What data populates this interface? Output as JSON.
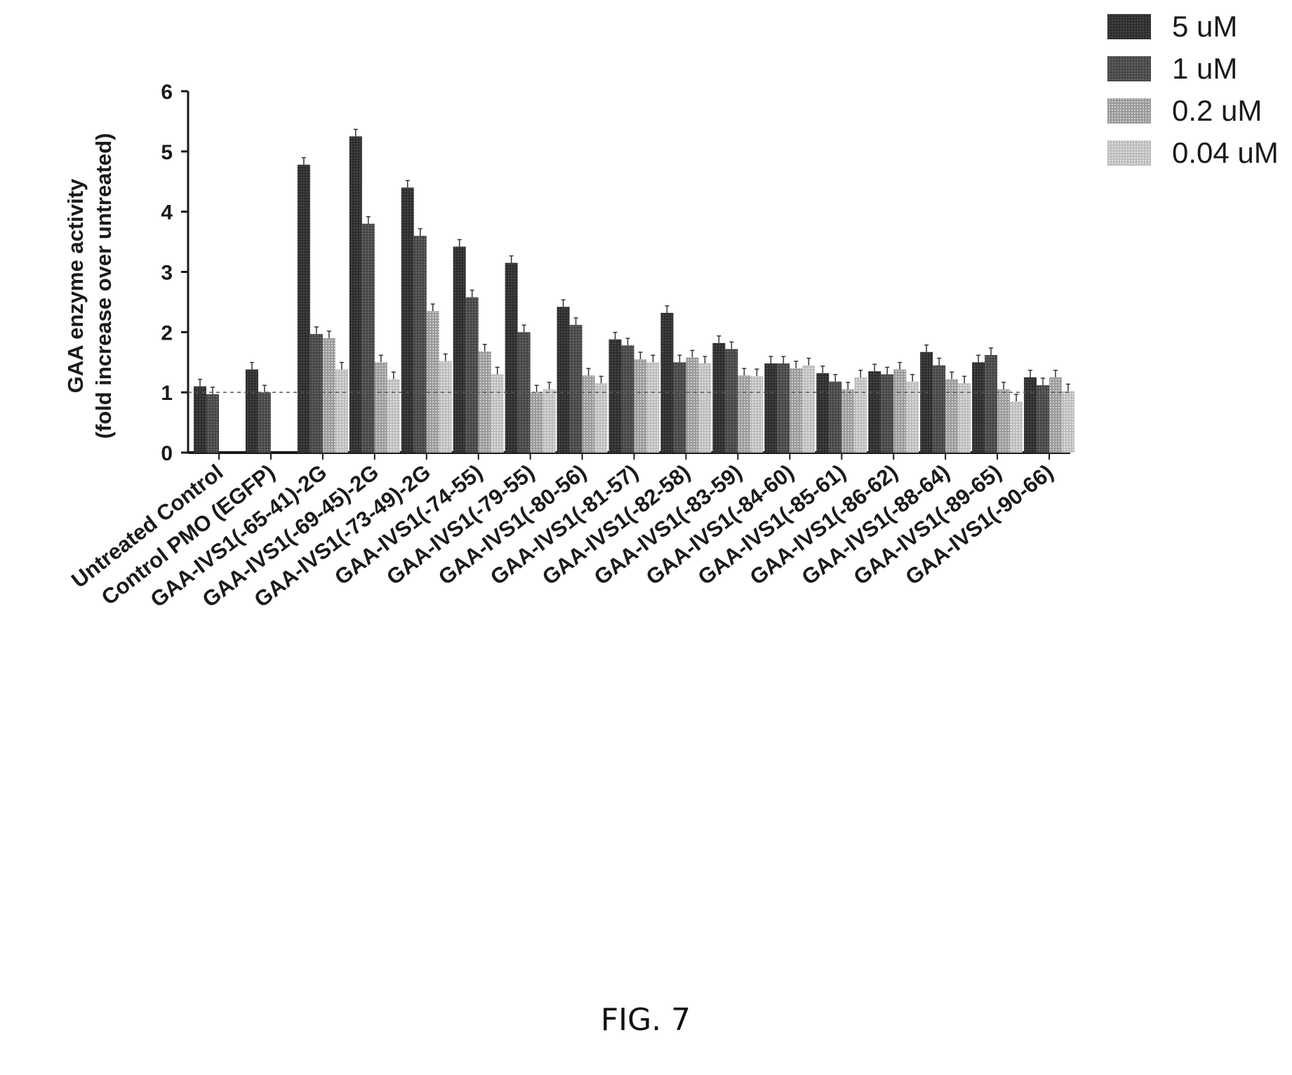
{
  "chart_data": {
    "type": "bar",
    "title": "",
    "xlabel": "",
    "ylabel_lines": [
      "GAA enzyme activity",
      "(fold increase over untreated)"
    ],
    "ylim": [
      0,
      6
    ],
    "yticks": [
      "0",
      "1",
      "2",
      "3",
      "4",
      "5",
      "6"
    ],
    "reference_line": 1,
    "grid": false,
    "legend_position": "top-right",
    "categories": [
      "Untreated Control",
      "Control PMO (EGFP)",
      "GAA-IVS1(-65-41)-2G",
      "GAA-IVS1(-69-45)-2G",
      "GAA-IVS1(-73-49)-2G",
      "GAA-IVS1(-74-55)",
      "GAA-IVS1(-79-55)",
      "GAA-IVS1(-80-56)",
      "GAA-IVS1(-81-57)",
      "GAA-IVS1(-82-58)",
      "GAA-IVS1(-83-59)",
      "GAA-IVS1(-84-60)",
      "GAA-IVS1(-85-61)",
      "GAA-IVS1(-86-62)",
      "GAA-IVS1(-88-64)",
      "GAA-IVS1(-89-65)",
      "GAA-IVS1(-90-66)"
    ],
    "series": [
      {
        "name": "5 uM",
        "color": "#3a3a3a",
        "values": [
          1.1,
          1.38,
          4.78,
          5.25,
          4.4,
          3.42,
          3.15,
          2.42,
          1.88,
          2.32,
          1.82,
          1.48,
          1.32,
          1.35,
          1.67,
          1.5,
          1.25
        ]
      },
      {
        "name": "1 uM",
        "color": "#555555",
        "values": [
          0.97,
          1.0,
          1.97,
          3.8,
          3.6,
          2.58,
          2.0,
          2.12,
          1.78,
          1.5,
          1.72,
          1.48,
          1.18,
          1.3,
          1.45,
          1.62,
          1.12
        ]
      },
      {
        "name": "0.2 uM",
        "color": "#a6a6a6",
        "values": [
          null,
          null,
          1.9,
          1.5,
          2.35,
          1.68,
          1.0,
          1.28,
          1.55,
          1.58,
          1.28,
          1.4,
          1.05,
          1.38,
          1.22,
          1.05,
          1.25
        ]
      },
      {
        "name": "0.04 uM",
        "color": "#c4c4c4",
        "values": [
          null,
          null,
          1.38,
          1.22,
          1.52,
          1.3,
          1.05,
          1.15,
          1.5,
          1.48,
          1.27,
          1.45,
          1.25,
          1.18,
          1.15,
          0.85,
          1.02
        ]
      }
    ]
  },
  "caption": "FIG. 7"
}
